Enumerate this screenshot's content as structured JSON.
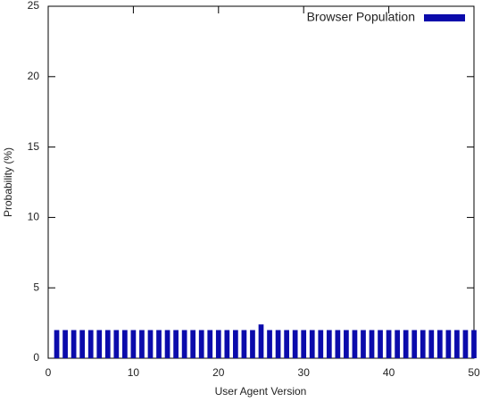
{
  "chart_data": {
    "type": "bar",
    "x": [
      1,
      2,
      3,
      4,
      5,
      6,
      7,
      8,
      9,
      10,
      11,
      12,
      13,
      14,
      15,
      16,
      17,
      18,
      19,
      20,
      21,
      22,
      23,
      24,
      25,
      26,
      27,
      28,
      29,
      30,
      31,
      32,
      33,
      34,
      35,
      36,
      37,
      38,
      39,
      40,
      41,
      42,
      43,
      44,
      45,
      46,
      47,
      48,
      49,
      50
    ],
    "series": [
      {
        "name": "Browser Population",
        "color": "#0b0bab",
        "values": [
          2,
          2,
          2,
          2,
          2,
          2,
          2,
          2,
          2,
          2,
          2,
          2,
          2,
          2,
          2,
          2,
          2,
          2,
          2,
          2,
          2,
          2,
          2,
          2,
          2.4,
          2,
          2,
          2,
          2,
          2,
          2,
          2,
          2,
          2,
          2,
          2,
          2,
          2,
          2,
          2,
          2,
          2,
          2,
          2,
          2,
          2,
          2,
          2,
          2,
          2
        ]
      }
    ],
    "xlabel": "User Agent Version",
    "ylabel": "Probability (%)",
    "xlim": [
      0,
      50
    ],
    "xticks": [
      0,
      10,
      20,
      30,
      40,
      50
    ],
    "ylim": [
      0,
      25
    ],
    "yticks": [
      0,
      5,
      10,
      15,
      20,
      25
    ],
    "legend": "top-right"
  }
}
